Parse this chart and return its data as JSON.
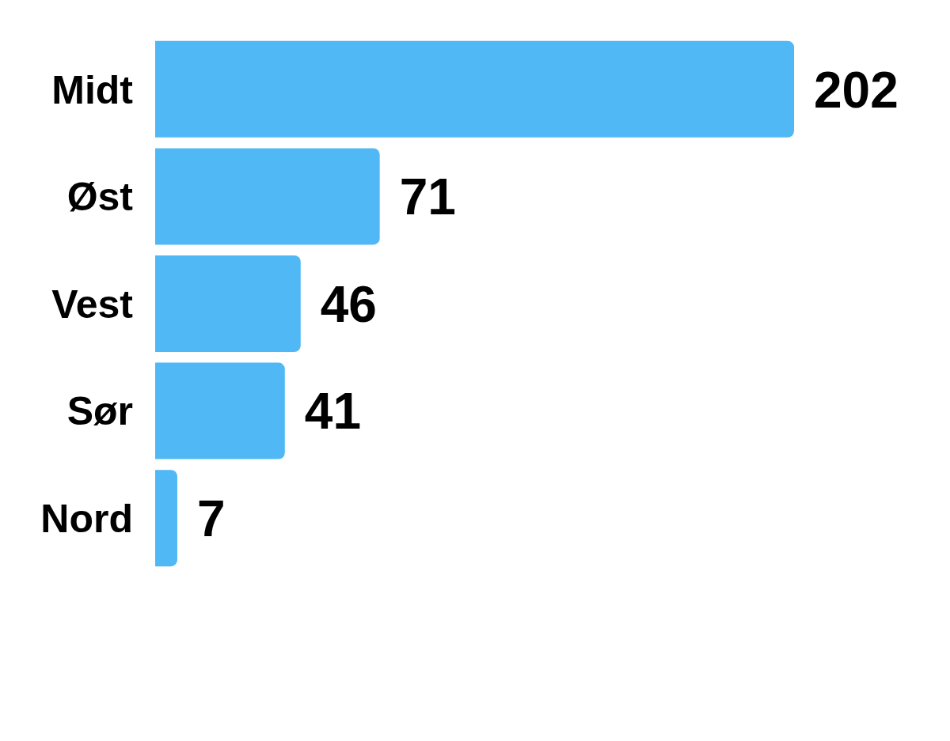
{
  "chart_data": {
    "type": "bar",
    "orientation": "horizontal",
    "categories": [
      "Midt",
      "Øst",
      "Vest",
      "Sør",
      "Nord"
    ],
    "values": [
      202,
      71,
      46,
      41,
      7
    ],
    "color": "#50b8f5",
    "data_labels": true
  }
}
